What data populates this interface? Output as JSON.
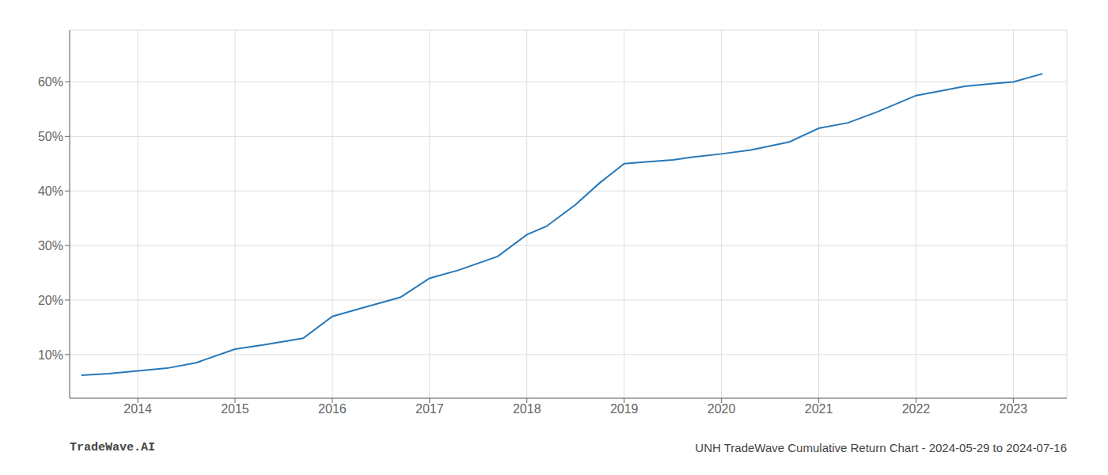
{
  "chart_data": {
    "type": "line",
    "x": [
      2013.42,
      2013.7,
      2014.0,
      2014.3,
      2014.6,
      2015.0,
      2015.3,
      2015.7,
      2016.0,
      2016.3,
      2016.7,
      2017.0,
      2017.3,
      2017.7,
      2018.0,
      2018.2,
      2018.5,
      2018.75,
      2019.0,
      2019.2,
      2019.5,
      2019.7,
      2020.0,
      2020.3,
      2020.7,
      2021.0,
      2021.3,
      2021.6,
      2022.0,
      2022.3,
      2022.5,
      2022.8,
      2023.0,
      2023.3
    ],
    "values": [
      0.062,
      0.065,
      0.07,
      0.075,
      0.085,
      0.11,
      0.118,
      0.13,
      0.17,
      0.185,
      0.205,
      0.24,
      0.255,
      0.28,
      0.32,
      0.335,
      0.375,
      0.415,
      0.45,
      0.453,
      0.457,
      0.462,
      0.468,
      0.475,
      0.49,
      0.515,
      0.525,
      0.545,
      0.575,
      0.585,
      0.592,
      0.597,
      0.6,
      0.615
    ],
    "color": "#2878b8",
    "xlim": [
      2013.3,
      2023.55
    ],
    "xticks": [
      2014,
      2015,
      2016,
      2017,
      2018,
      2019,
      2020,
      2021,
      2022,
      2023
    ],
    "ylim": [
      0.02,
      0.695
    ],
    "yticks": [
      {
        "value": 0.1,
        "label": "10%"
      },
      {
        "value": 0.2,
        "label": "20%"
      },
      {
        "value": 0.3,
        "label": "30%"
      },
      {
        "value": 0.4,
        "label": "40%"
      },
      {
        "value": 0.5,
        "label": "50%"
      },
      {
        "value": 0.6,
        "label": "60%"
      }
    ],
    "grid": true,
    "annotations": [
      "TradeWave.AI",
      "UNH TradeWave Cumulative Return Chart - 2024-05-29 to 2024-07-16"
    ]
  }
}
